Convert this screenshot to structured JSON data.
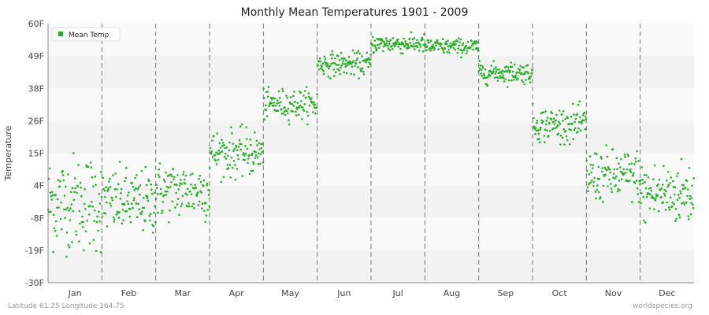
{
  "chart_data": {
    "type": "scatter",
    "title": "Monthly Mean Temperatures 1901 - 2009",
    "ylabel": "Temperature",
    "xlabel": "",
    "categories": [
      "Jan",
      "Feb",
      "Mar",
      "Apr",
      "May",
      "Jun",
      "Jul",
      "Aug",
      "Sep",
      "Oct",
      "Nov",
      "Dec"
    ],
    "yticks": [
      "-30F",
      "-19F",
      "-8F",
      "4F",
      "15F",
      "26F",
      "38F",
      "49F",
      "60F"
    ],
    "ylim": [
      -30,
      60
    ],
    "legend": {
      "label": "Mean Temp",
      "position": "top-left"
    },
    "grid": true,
    "series": [
      {
        "name": "Mean Temp",
        "color": "#22b022",
        "year_range": [
          1901,
          2009
        ],
        "monthly_mean": [
          -2,
          -2,
          2,
          15,
          32,
          46,
          53,
          52,
          43,
          25,
          7,
          1
        ],
        "monthly_min": [
          -21,
          -14,
          -9,
          5,
          25,
          41,
          49,
          48,
          38,
          18,
          -2,
          -11
        ],
        "monthly_max": [
          21,
          14,
          16,
          25,
          38,
          51,
          57,
          55,
          47,
          33,
          21,
          17
        ]
      }
    ]
  },
  "footer": {
    "location": "Latitude 61.25 Longitude 164.75",
    "source": "worldspecies.org"
  }
}
